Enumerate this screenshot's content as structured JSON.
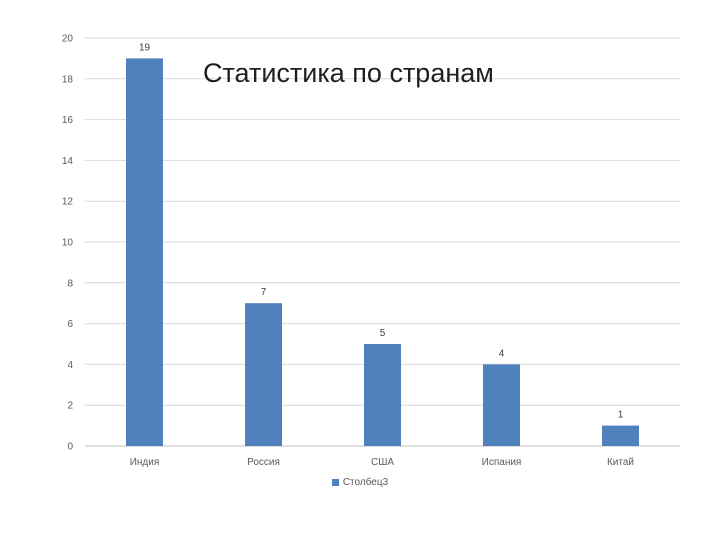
{
  "chart_data": {
    "type": "bar",
    "title": "Статистика по странам",
    "categories": [
      "Индия",
      "Россия",
      "США",
      "Испания",
      "Китай"
    ],
    "series": [
      {
        "name": "Столбец3",
        "values": [
          19,
          7,
          5,
          4,
          1
        ],
        "color": "#4f81bd"
      }
    ],
    "ylim": [
      0,
      20
    ],
    "yticks": [
      0,
      2,
      4,
      6,
      8,
      10,
      12,
      14,
      16,
      18,
      20
    ],
    "data_labels": true,
    "grid": true,
    "legend_position": "bottom"
  }
}
